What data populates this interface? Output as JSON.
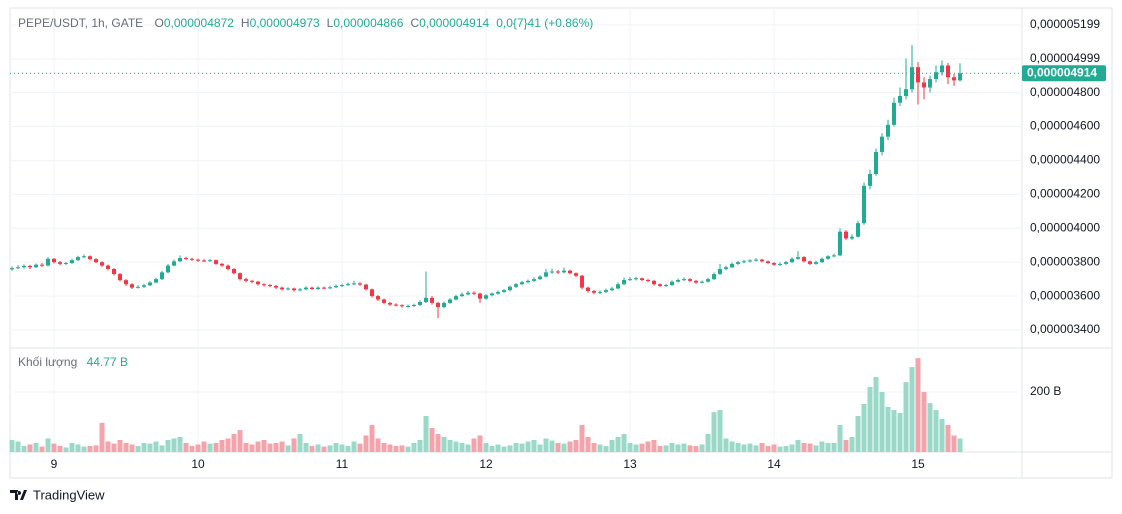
{
  "chart_data": {
    "type": "candlestick",
    "title": "PEPE/USDT, 1h, GATE",
    "header_fields": [
      {
        "key": "O",
        "value": "0,000004872"
      },
      {
        "key": "H",
        "value": "0,000004973"
      },
      {
        "key": "L",
        "value": "0,000004866"
      },
      {
        "key": "C",
        "value": "0,000004914"
      }
    ],
    "change_label": "0,0{7}41 (+0.86%)",
    "last_price_label": "0,000004914",
    "volume_title": "Khối lượng",
    "volume_value_label": "44.77 B",
    "up_color": "#22ab94",
    "down_color": "#f23645",
    "volume_up_color": "#9ad8c7",
    "volume_down_color": "#f5a3ab",
    "grid": true,
    "categories": [
      null,
      null,
      null,
      null,
      null,
      null,
      null,
      "9",
      null,
      null,
      null,
      null,
      null,
      null,
      null,
      null,
      null,
      null,
      null,
      null,
      null,
      null,
      null,
      null,
      null,
      null,
      null,
      null,
      null,
      null,
      null,
      "10",
      null,
      null,
      null,
      null,
      null,
      null,
      null,
      null,
      null,
      null,
      null,
      null,
      null,
      null,
      null,
      null,
      null,
      null,
      null,
      null,
      null,
      null,
      null,
      "11",
      null,
      null,
      null,
      null,
      null,
      null,
      null,
      null,
      null,
      null,
      null,
      null,
      null,
      null,
      null,
      null,
      null,
      null,
      null,
      null,
      null,
      null,
      null,
      "12",
      null,
      null,
      null,
      null,
      null,
      null,
      null,
      null,
      null,
      null,
      null,
      null,
      null,
      null,
      null,
      null,
      null,
      null,
      null,
      null,
      null,
      null,
      null,
      "13",
      null,
      null,
      null,
      null,
      null,
      null,
      null,
      null,
      null,
      null,
      null,
      null,
      null,
      null,
      null,
      null,
      null,
      null,
      null,
      null,
      null,
      null,
      null,
      "14",
      null,
      null,
      null,
      null,
      null,
      null,
      null,
      null,
      null,
      null,
      null,
      null,
      null,
      null,
      null,
      null,
      null,
      null,
      null,
      null,
      null,
      null,
      null,
      "15",
      null,
      null,
      null,
      null,
      null,
      null,
      null
    ],
    "open": [
      3.758e-06,
      3.765e-06,
      3.77e-06,
      3.778e-06,
      3.77e-06,
      3.785e-06,
      3.78e-06,
      3.82e-06,
      3.8e-06,
      3.79e-06,
      3.795e-06,
      3.812e-06,
      3.83e-06,
      3.835e-06,
      3.818e-06,
      3.8e-06,
      3.78e-06,
      3.76e-06,
      3.73e-06,
      3.694e-06,
      3.67e-06,
      3.65e-06,
      3.655e-06,
      3.664e-06,
      3.68e-06,
      3.7e-06,
      3.74e-06,
      3.78e-06,
      3.805e-06,
      3.825e-06,
      3.82e-06,
      3.815e-06,
      3.81e-06,
      3.808e-06,
      3.812e-06,
      3.79e-06,
      3.78e-06,
      3.76e-06,
      3.735e-06,
      3.7e-06,
      3.69e-06,
      3.685e-06,
      3.67e-06,
      3.665e-06,
      3.66e-06,
      3.65e-06,
      3.64e-06,
      3.645e-06,
      3.635e-06,
      3.64e-06,
      3.65e-06,
      3.642e-06,
      3.65e-06,
      3.648e-06,
      3.652e-06,
      3.66e-06,
      3.665e-06,
      3.67e-06,
      3.675e-06,
      3.668e-06,
      3.64e-06,
      3.6e-06,
      3.58e-06,
      3.56e-06,
      3.55e-06,
      3.546e-06,
      3.54e-06,
      3.542e-06,
      3.548e-06,
      3.565e-06,
      3.59e-06,
      3.56e-06,
      3.535e-06,
      3.56e-06,
      3.58e-06,
      3.6e-06,
      3.61e-06,
      3.62e-06,
      3.615e-06,
      3.585e-06,
      3.605e-06,
      3.615e-06,
      3.625e-06,
      3.635e-06,
      3.655e-06,
      3.67e-06,
      3.682e-06,
      3.69e-06,
      3.7e-06,
      3.715e-06,
      3.74e-06,
      3.745e-06,
      3.74e-06,
      3.75e-06,
      3.735e-06,
      3.72e-06,
      3.65e-06,
      3.63e-06,
      3.62e-06,
      3.625e-06,
      3.635e-06,
      3.645e-06,
      3.67e-06,
      3.695e-06,
      3.7e-06,
      3.705e-06,
      3.695e-06,
      3.69e-06,
      3.67e-06,
      3.66e-06,
      3.665e-06,
      3.685e-06,
      3.695e-06,
      3.7e-06,
      3.69e-06,
      3.68e-06,
      3.685e-06,
      3.7e-06,
      3.73e-06,
      3.76e-06,
      3.77e-06,
      3.79e-06,
      3.8e-06,
      3.805e-06,
      3.81e-06,
      3.815e-06,
      3.805e-06,
      3.795e-06,
      3.785e-06,
      3.79e-06,
      3.8e-06,
      3.82e-06,
      3.83e-06,
      3.805e-06,
      3.79e-06,
      3.8e-06,
      3.82e-06,
      3.835e-06,
      3.84e-06,
      3.98e-06,
      3.94e-06,
      3.95e-06,
      4.03e-06,
      4.25e-06,
      4.32e-06,
      4.45e-06,
      4.54e-06,
      4.61e-06,
      4.74e-06,
      4.78e-06,
      4.82e-06,
      4.95e-06,
      4.86e-06,
      4.83e-06,
      4.88e-06,
      4.92e-06,
      4.96e-06,
      4.89e-06,
      4.872e-06
    ],
    "high": [
      3.775e-06,
      3.782e-06,
      3.786e-06,
      3.785e-06,
      3.792e-06,
      3.795e-06,
      3.83e-06,
      3.825e-06,
      3.808e-06,
      3.802e-06,
      3.82e-06,
      3.838e-06,
      3.845e-06,
      3.84e-06,
      3.824e-06,
      3.806e-06,
      3.786e-06,
      3.765e-06,
      3.736e-06,
      3.7e-06,
      3.676e-06,
      3.664e-06,
      3.672e-06,
      3.688e-06,
      3.708e-06,
      3.748e-06,
      3.79e-06,
      3.815e-06,
      3.84e-06,
      3.832e-06,
      3.826e-06,
      3.822e-06,
      3.818e-06,
      3.82e-06,
      3.816e-06,
      3.796e-06,
      3.786e-06,
      3.765e-06,
      3.74e-06,
      3.708e-06,
      3.696e-06,
      3.69e-06,
      3.676e-06,
      3.672e-06,
      3.666e-06,
      3.656e-06,
      3.652e-06,
      3.65e-06,
      3.648e-06,
      3.658e-06,
      3.656e-06,
      3.658e-06,
      3.656e-06,
      3.66e-06,
      3.668e-06,
      3.672e-06,
      3.68e-06,
      3.69e-06,
      3.682e-06,
      3.672e-06,
      3.645e-06,
      3.606e-06,
      3.586e-06,
      3.566e-06,
      3.558e-06,
      3.552e-06,
      3.55e-06,
      3.556e-06,
      3.575e-06,
      3.745e-06,
      3.6e-06,
      3.566e-06,
      3.568e-06,
      3.588e-06,
      3.608e-06,
      3.622e-06,
      3.63e-06,
      3.628e-06,
      3.62e-06,
      3.612e-06,
      3.622e-06,
      3.632e-06,
      3.642e-06,
      3.662e-06,
      3.678e-06,
      3.69e-06,
      3.698e-06,
      3.71e-06,
      3.724e-06,
      3.76e-06,
      3.762e-06,
      3.754e-06,
      3.768e-06,
      3.756e-06,
      3.74e-06,
      3.726e-06,
      3.656e-06,
      3.636e-06,
      3.634e-06,
      3.644e-06,
      3.654e-06,
      3.68e-06,
      3.71e-06,
      3.712e-06,
      3.714e-06,
      3.71e-06,
      3.702e-06,
      3.696e-06,
      3.676e-06,
      3.672e-06,
      3.692e-06,
      3.704e-06,
      3.71e-06,
      3.706e-06,
      3.696e-06,
      3.692e-06,
      3.708e-06,
      3.74e-06,
      3.79e-06,
      3.78e-06,
      3.798e-06,
      3.808e-06,
      3.814e-06,
      3.818e-06,
      3.824e-06,
      3.82e-06,
      3.81e-06,
      3.8e-06,
      3.798e-06,
      3.808e-06,
      3.828e-06,
      3.865e-06,
      3.836e-06,
      3.81e-06,
      3.808e-06,
      3.828e-06,
      3.842e-06,
      3.85e-06,
      4e-06,
      3.99e-06,
      3.965e-06,
      4.045e-06,
      4.27e-06,
      4.345e-06,
      4.47e-06,
      4.56e-06,
      4.64e-06,
      4.77e-06,
      4.83e-06,
      5e-06,
      5.08e-06,
      4.98e-06,
      4.89e-06,
      4.9e-06,
      4.96e-06,
      4.99e-06,
      4.975e-06,
      4.91e-06,
      4.973e-06
    ],
    "low": [
      3.75e-06,
      3.758e-06,
      3.762e-06,
      3.76e-06,
      3.765e-06,
      3.772e-06,
      3.775e-06,
      3.792e-06,
      3.782e-06,
      3.784e-06,
      3.79e-06,
      3.806e-06,
      3.824e-06,
      3.81e-06,
      3.794e-06,
      3.772e-06,
      3.752e-06,
      3.722e-06,
      3.686e-06,
      3.66e-06,
      3.642e-06,
      3.644e-06,
      3.648e-06,
      3.658e-06,
      3.675e-06,
      3.695e-06,
      3.735e-06,
      3.775e-06,
      3.8e-06,
      3.812e-06,
      3.808e-06,
      3.802e-06,
      3.8e-06,
      3.802e-06,
      3.784e-06,
      3.772e-06,
      3.752e-06,
      3.728e-06,
      3.692e-06,
      3.682e-06,
      3.676e-06,
      3.662e-06,
      3.656e-06,
      3.652e-06,
      3.642e-06,
      3.632e-06,
      3.634e-06,
      3.626e-06,
      3.628e-06,
      3.634e-06,
      3.636e-06,
      3.636e-06,
      3.64e-06,
      3.642e-06,
      3.646e-06,
      3.654e-06,
      3.66e-06,
      3.664e-06,
      3.66e-06,
      3.632e-06,
      3.592e-06,
      3.572e-06,
      3.552e-06,
      3.542e-06,
      3.538e-06,
      3.532e-06,
      3.532e-06,
      3.536e-06,
      3.542e-06,
      3.56e-06,
      3.55e-06,
      3.47e-06,
      3.528e-06,
      3.554e-06,
      3.574e-06,
      3.594e-06,
      3.604e-06,
      3.606e-06,
      3.56e-06,
      3.578e-06,
      3.598e-06,
      3.608e-06,
      3.618e-06,
      3.628e-06,
      3.648e-06,
      3.664e-06,
      3.676e-06,
      3.684e-06,
      3.694e-06,
      3.71e-06,
      3.732e-06,
      3.73e-06,
      3.734e-06,
      3.728e-06,
      3.712e-06,
      3.64e-06,
      3.62e-06,
      3.61e-06,
      3.612e-06,
      3.618e-06,
      3.628e-06,
      3.64e-06,
      3.665e-06,
      3.688e-06,
      3.692e-06,
      3.688e-06,
      3.682e-06,
      3.662e-06,
      3.652e-06,
      3.654e-06,
      3.66e-06,
      3.68e-06,
      3.688e-06,
      3.682e-06,
      3.672e-06,
      3.674e-06,
      3.68e-06,
      3.695e-06,
      3.725e-06,
      3.752e-06,
      3.765e-06,
      3.784e-06,
      3.794e-06,
      3.798e-06,
      3.804e-06,
      3.798e-06,
      3.788e-06,
      3.778e-06,
      3.778e-06,
      3.784e-06,
      3.795e-06,
      3.814e-06,
      3.798e-06,
      3.782e-06,
      3.784e-06,
      3.795e-06,
      3.815e-06,
      3.828e-06,
      3.835e-06,
      3.93e-06,
      3.93e-06,
      3.945e-06,
      4.02e-06,
      4.23e-06,
      4.31e-06,
      4.43e-06,
      4.52e-06,
      4.6e-06,
      4.72e-06,
      4.76e-06,
      4.8e-06,
      4.73e-06,
      4.76e-06,
      4.8e-06,
      4.86e-06,
      4.9e-06,
      4.85e-06,
      4.84e-06,
      4.866e-06
    ],
    "close": [
      3.765e-06,
      3.77e-06,
      3.778e-06,
      3.77e-06,
      3.785e-06,
      3.78e-06,
      3.82e-06,
      3.8e-06,
      3.79e-06,
      3.795e-06,
      3.812e-06,
      3.83e-06,
      3.835e-06,
      3.818e-06,
      3.8e-06,
      3.78e-06,
      3.76e-06,
      3.73e-06,
      3.694e-06,
      3.67e-06,
      3.65e-06,
      3.655e-06,
      3.664e-06,
      3.68e-06,
      3.7e-06,
      3.74e-06,
      3.78e-06,
      3.805e-06,
      3.825e-06,
      3.82e-06,
      3.815e-06,
      3.81e-06,
      3.808e-06,
      3.812e-06,
      3.79e-06,
      3.78e-06,
      3.76e-06,
      3.735e-06,
      3.7e-06,
      3.69e-06,
      3.685e-06,
      3.67e-06,
      3.665e-06,
      3.66e-06,
      3.65e-06,
      3.64e-06,
      3.645e-06,
      3.635e-06,
      3.64e-06,
      3.65e-06,
      3.642e-06,
      3.65e-06,
      3.648e-06,
      3.652e-06,
      3.66e-06,
      3.665e-06,
      3.67e-06,
      3.675e-06,
      3.668e-06,
      3.64e-06,
      3.6e-06,
      3.58e-06,
      3.56e-06,
      3.55e-06,
      3.546e-06,
      3.54e-06,
      3.542e-06,
      3.548e-06,
      3.565e-06,
      3.59e-06,
      3.56e-06,
      3.535e-06,
      3.56e-06,
      3.58e-06,
      3.6e-06,
      3.61e-06,
      3.62e-06,
      3.615e-06,
      3.585e-06,
      3.605e-06,
      3.615e-06,
      3.625e-06,
      3.635e-06,
      3.655e-06,
      3.67e-06,
      3.682e-06,
      3.69e-06,
      3.7e-06,
      3.715e-06,
      3.74e-06,
      3.745e-06,
      3.74e-06,
      3.75e-06,
      3.735e-06,
      3.72e-06,
      3.65e-06,
      3.63e-06,
      3.62e-06,
      3.625e-06,
      3.635e-06,
      3.645e-06,
      3.67e-06,
      3.695e-06,
      3.7e-06,
      3.705e-06,
      3.695e-06,
      3.69e-06,
      3.67e-06,
      3.66e-06,
      3.665e-06,
      3.685e-06,
      3.695e-06,
      3.7e-06,
      3.69e-06,
      3.68e-06,
      3.685e-06,
      3.7e-06,
      3.73e-06,
      3.76e-06,
      3.77e-06,
      3.79e-06,
      3.8e-06,
      3.805e-06,
      3.81e-06,
      3.815e-06,
      3.805e-06,
      3.795e-06,
      3.785e-06,
      3.79e-06,
      3.8e-06,
      3.82e-06,
      3.83e-06,
      3.805e-06,
      3.79e-06,
      3.8e-06,
      3.82e-06,
      3.835e-06,
      3.84e-06,
      3.98e-06,
      3.94e-06,
      3.95e-06,
      4.03e-06,
      4.25e-06,
      4.32e-06,
      4.45e-06,
      4.54e-06,
      4.61e-06,
      4.74e-06,
      4.78e-06,
      4.82e-06,
      4.95e-06,
      4.86e-06,
      4.83e-06,
      4.88e-06,
      4.92e-06,
      4.96e-06,
      4.89e-06,
      4.872e-06,
      4.914e-06
    ],
    "volume": [
      40,
      35,
      20,
      25,
      30,
      18,
      45,
      28,
      20,
      15,
      30,
      25,
      18,
      20,
      22,
      97,
      35,
      28,
      40,
      30,
      25,
      20,
      30,
      28,
      35,
      22,
      40,
      45,
      50,
      30,
      20,
      25,
      35,
      28,
      30,
      40,
      45,
      60,
      73,
      30,
      25,
      35,
      40,
      28,
      30,
      35,
      22,
      45,
      60,
      30,
      20,
      25,
      18,
      22,
      30,
      25,
      20,
      35,
      28,
      55,
      90,
      45,
      30,
      25,
      20,
      22,
      18,
      30,
      40,
      120,
      80,
      60,
      50,
      40,
      35,
      30,
      25,
      45,
      55,
      30,
      20,
      25,
      18,
      22,
      30,
      28,
      35,
      40,
      25,
      45,
      38,
      30,
      28,
      35,
      40,
      90,
      50,
      30,
      25,
      20,
      40,
      50,
      60,
      30,
      25,
      28,
      35,
      40,
      20,
      22,
      30,
      25,
      28,
      22,
      20,
      25,
      60,
      133,
      140,
      45,
      35,
      30,
      25,
      28,
      22,
      30,
      20,
      25,
      18,
      20,
      25,
      40,
      30,
      28,
      22,
      35,
      30,
      30,
      90,
      40,
      50,
      120,
      160,
      217,
      250,
      200,
      150,
      140,
      130,
      233,
      283,
      313,
      200,
      163,
      140,
      110,
      90,
      55,
      44.77
    ],
    "ylim": [
      3.294e-06,
      5.287e-06
    ],
    "yticks": [
      {
        "value": 3.4e-06,
        "label": "0,000003400"
      },
      {
        "value": 3.6e-06,
        "label": "0,000003600"
      },
      {
        "value": 3.8e-06,
        "label": "0,000003800"
      },
      {
        "value": 4e-06,
        "label": "0,000004000"
      },
      {
        "value": 4.2e-06,
        "label": "0,000004200"
      },
      {
        "value": 4.4e-06,
        "label": "0,000004400"
      },
      {
        "value": 4.6e-06,
        "label": "0,000004600"
      },
      {
        "value": 4.8e-06,
        "label": "0,000004800"
      },
      {
        "value": 4.999e-06,
        "label": "0,000004999"
      },
      {
        "value": 5.199e-06,
        "label": "0,000005199"
      }
    ],
    "volume_ylim": [
      0,
      340
    ],
    "volume_yticks": [
      {
        "value": 200,
        "label": "200 B"
      }
    ]
  },
  "branding": "TradingView"
}
